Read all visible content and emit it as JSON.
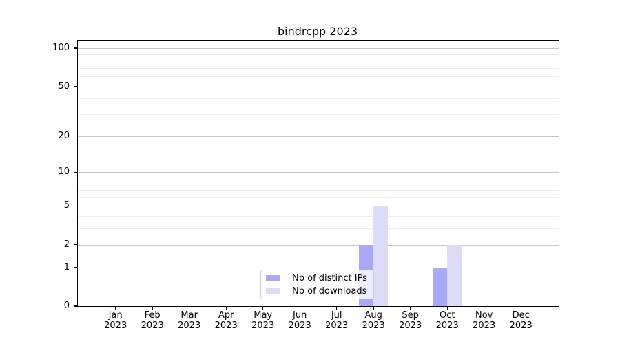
{
  "title": "bindrcpp 2023",
  "chart_data": {
    "type": "bar",
    "title": "bindrcpp 2023",
    "categories": [
      "Jan 2023",
      "Feb 2023",
      "Mar 2023",
      "Apr 2023",
      "May 2023",
      "Jun 2023",
      "Jul 2023",
      "Aug 2023",
      "Sep 2023",
      "Oct 2023",
      "Nov 2023",
      "Dec 2023"
    ],
    "month_labels": [
      {
        "month": "Jan",
        "year": "2023"
      },
      {
        "month": "Feb",
        "year": "2023"
      },
      {
        "month": "Mar",
        "year": "2023"
      },
      {
        "month": "Apr",
        "year": "2023"
      },
      {
        "month": "May",
        "year": "2023"
      },
      {
        "month": "Jun",
        "year": "2023"
      },
      {
        "month": "Jul",
        "year": "2023"
      },
      {
        "month": "Aug",
        "year": "2023"
      },
      {
        "month": "Sep",
        "year": "2023"
      },
      {
        "month": "Oct",
        "year": "2023"
      },
      {
        "month": "Nov",
        "year": "2023"
      },
      {
        "month": "Dec",
        "year": "2023"
      }
    ],
    "series": [
      {
        "name": "Nb of distinct IPs",
        "color": "#a9a9f8",
        "values": [
          0,
          0,
          0,
          0,
          0,
          0,
          0,
          2,
          0,
          1,
          0,
          0
        ]
      },
      {
        "name": "Nb of downloads",
        "color": "#dcdcf9",
        "values": [
          0,
          0,
          0,
          0,
          0,
          0,
          0,
          5,
          0,
          2,
          0,
          0
        ]
      }
    ],
    "yscale": "log1p",
    "ylim": [
      0,
      100
    ],
    "yticks_major": [
      0,
      1,
      2,
      5,
      10,
      20,
      50,
      100
    ],
    "yticks_minor": [
      3,
      4,
      6,
      7,
      8,
      9,
      30,
      40,
      60,
      70,
      80,
      90
    ],
    "grid": true,
    "legend_position": "lower center"
  },
  "legend": {
    "items": [
      {
        "label": "Nb of distinct IPs"
      },
      {
        "label": "Nb of downloads"
      }
    ]
  },
  "colors": {
    "bar_distinct_ips": "#a9a9f8",
    "bar_downloads": "#dcdcf9",
    "grid_major": "#c8c8c8",
    "grid_minor": "#ededed",
    "axis": "#000000",
    "legend_border": "#cccccc"
  }
}
